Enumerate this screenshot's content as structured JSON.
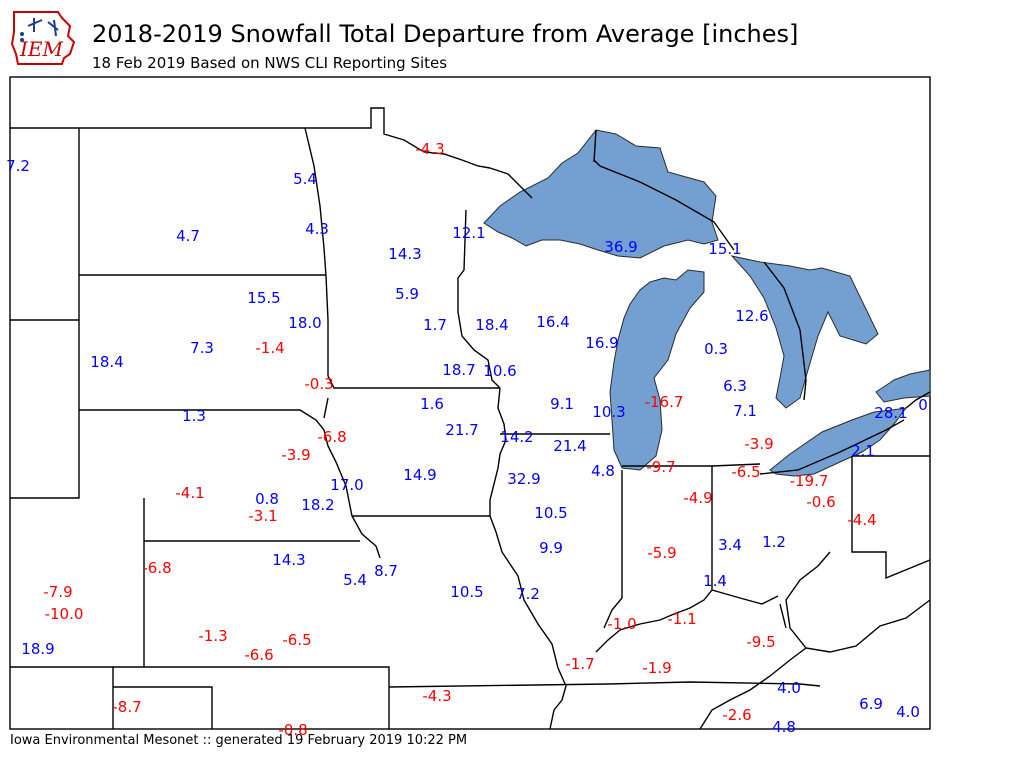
{
  "header": {
    "title": "2018-2019 Snowfall Total Departure from Average [inches]",
    "subtitle": "18 Feb 2019 Based on NWS CLI Reporting Sites"
  },
  "logo": {
    "text": "IEM"
  },
  "footer": {
    "text": "Iowa Environmental Mesonet :: generated 19 February 2019 10:22 PM"
  },
  "colors": {
    "positive": "#0000ff",
    "negative": "#ff0000",
    "lake": "#739fd1"
  },
  "stations": [
    {
      "value": "7.2"
    },
    {
      "value": "5.4"
    },
    {
      "value": "-4.3"
    },
    {
      "value": "4.7"
    },
    {
      "value": "4.3"
    },
    {
      "value": "12.1"
    },
    {
      "value": "14.3"
    },
    {
      "value": "36.9"
    },
    {
      "value": "15.1"
    },
    {
      "value": "15.5"
    },
    {
      "value": "5.9"
    },
    {
      "value": "18.0"
    },
    {
      "value": "1.7"
    },
    {
      "value": "18.4"
    },
    {
      "value": "16.4"
    },
    {
      "value": "12.6"
    },
    {
      "value": "7.3"
    },
    {
      "value": "-1.4"
    },
    {
      "value": "18.4"
    },
    {
      "value": "16.9"
    },
    {
      "value": "0.3"
    },
    {
      "value": "-0.3"
    },
    {
      "value": "18.7"
    },
    {
      "value": "10.6"
    },
    {
      "value": "6.3"
    },
    {
      "value": "1.6"
    },
    {
      "value": "9.1"
    },
    {
      "value": "10.3"
    },
    {
      "value": "-16.7"
    },
    {
      "value": "7.1"
    },
    {
      "value": "28.1"
    },
    {
      "value": "0"
    },
    {
      "value": "1.3"
    },
    {
      "value": "21.7"
    },
    {
      "value": "-6.8"
    },
    {
      "value": "14.2"
    },
    {
      "value": "21.4"
    },
    {
      "value": "-3.9"
    },
    {
      "value": "-3.9"
    },
    {
      "value": "2.1"
    },
    {
      "value": "-9.7"
    },
    {
      "value": "4.8"
    },
    {
      "value": "-6.5"
    },
    {
      "value": "-19.7"
    },
    {
      "value": "14.9"
    },
    {
      "value": "32.9"
    },
    {
      "value": "17.0"
    },
    {
      "value": "-4.1"
    },
    {
      "value": "0.8"
    },
    {
      "value": "-4.9"
    },
    {
      "value": "-0.6"
    },
    {
      "value": "18.2"
    },
    {
      "value": "-3.1"
    },
    {
      "value": "10.5"
    },
    {
      "value": "-4.4"
    },
    {
      "value": "3.4"
    },
    {
      "value": "1.2"
    },
    {
      "value": "9.9"
    },
    {
      "value": "-5.9"
    },
    {
      "value": "14.3"
    },
    {
      "value": "-6.8"
    },
    {
      "value": "8.7"
    },
    {
      "value": "5.4"
    },
    {
      "value": "1.4"
    },
    {
      "value": "-7.9"
    },
    {
      "value": "10.5"
    },
    {
      "value": "7.2"
    },
    {
      "value": "-10.0"
    },
    {
      "value": "-1.0"
    },
    {
      "value": "-1.1"
    },
    {
      "value": "-1.3"
    },
    {
      "value": "-6.5"
    },
    {
      "value": "-9.5"
    },
    {
      "value": "18.9"
    },
    {
      "value": "-6.6"
    },
    {
      "value": "-1.7"
    },
    {
      "value": "-1.9"
    },
    {
      "value": "4.0"
    },
    {
      "value": "-4.3"
    },
    {
      "value": "6.9"
    },
    {
      "value": "-8.7"
    },
    {
      "value": "4.0"
    },
    {
      "value": "-2.6"
    },
    {
      "value": "-0.8"
    },
    {
      "value": "4.8"
    }
  ]
}
